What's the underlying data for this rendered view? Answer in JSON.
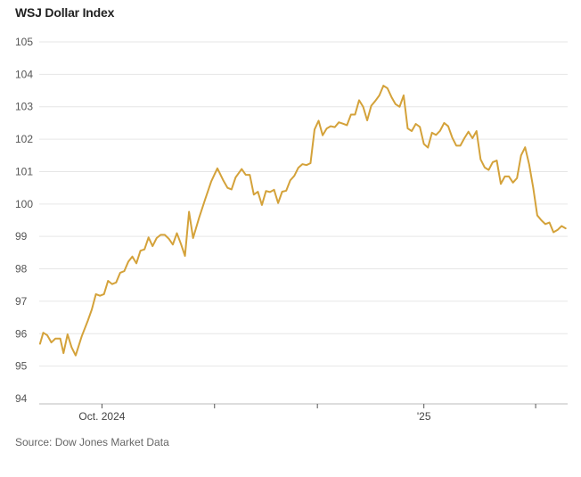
{
  "chart_data": {
    "type": "line",
    "title": "WSJ Dollar Index",
    "xlabel": "",
    "ylabel": "",
    "ylim": [
      94,
      105
    ],
    "yticks": [
      94,
      95,
      96,
      97,
      98,
      99,
      100,
      101,
      102,
      103,
      104,
      105
    ],
    "grid": true,
    "line_color": "#D4A23A",
    "x_tick_labels": [
      {
        "label": "Oct. 2024",
        "x": 5.5
      },
      {
        "label": "",
        "x": 33.3
      },
      {
        "label": "",
        "x": 58.7
      },
      {
        "label": "'25",
        "x": 85.0
      },
      {
        "label": "",
        "x": 112.6
      },
      {
        "label": "",
        "x": 137.4
      }
    ],
    "series": [
      {
        "points": [
          [
            -9.8,
            95.69
          ],
          [
            -9.0,
            96.03
          ],
          [
            -8.0,
            95.95
          ],
          [
            -7.0,
            95.73
          ],
          [
            -6.0,
            95.85
          ],
          [
            -4.8,
            95.85
          ],
          [
            -4.0,
            95.4
          ],
          [
            -3.0,
            95.98
          ],
          [
            -2.0,
            95.58
          ],
          [
            -1.0,
            95.33
          ],
          [
            0.5,
            95.92
          ],
          [
            2.0,
            96.4
          ],
          [
            3.0,
            96.75
          ],
          [
            4.0,
            97.22
          ],
          [
            5.0,
            97.17
          ],
          [
            6.0,
            97.22
          ],
          [
            7.0,
            97.63
          ],
          [
            8.0,
            97.53
          ],
          [
            9.0,
            97.58
          ],
          [
            10.0,
            97.88
          ],
          [
            11.0,
            97.93
          ],
          [
            12.0,
            98.22
          ],
          [
            13.0,
            98.38
          ],
          [
            14.0,
            98.17
          ],
          [
            15.0,
            98.56
          ],
          [
            16.0,
            98.6
          ],
          [
            17.0,
            98.97
          ],
          [
            18.0,
            98.7
          ],
          [
            19.0,
            98.95
          ],
          [
            20.0,
            99.05
          ],
          [
            21.0,
            99.05
          ],
          [
            22.0,
            98.93
          ],
          [
            23.0,
            98.75
          ],
          [
            24.0,
            99.1
          ],
          [
            25.0,
            98.77
          ],
          [
            26.0,
            98.4
          ],
          [
            27.0,
            99.76
          ],
          [
            28.0,
            98.95
          ],
          [
            29.5,
            99.58
          ],
          [
            31.0,
            100.15
          ],
          [
            32.5,
            100.7
          ],
          [
            34.0,
            101.1
          ],
          [
            35.5,
            100.72
          ],
          [
            36.5,
            100.5
          ],
          [
            37.5,
            100.45
          ],
          [
            38.5,
            100.82
          ],
          [
            40.0,
            101.08
          ],
          [
            41.0,
            100.9
          ],
          [
            42.0,
            100.9
          ],
          [
            43.0,
            100.29
          ],
          [
            44.0,
            100.38
          ],
          [
            45.0,
            99.97
          ],
          [
            46.0,
            100.4
          ],
          [
            47.0,
            100.37
          ],
          [
            48.0,
            100.44
          ],
          [
            49.0,
            100.03
          ],
          [
            50.0,
            100.38
          ],
          [
            51.0,
            100.41
          ],
          [
            52.0,
            100.73
          ],
          [
            53.0,
            100.87
          ],
          [
            54.0,
            101.12
          ],
          [
            55.0,
            101.23
          ],
          [
            56.0,
            101.2
          ],
          [
            57.0,
            101.26
          ],
          [
            58.0,
            102.3
          ],
          [
            59.0,
            102.57
          ],
          [
            60.0,
            102.12
          ],
          [
            61.0,
            102.33
          ],
          [
            62.0,
            102.4
          ],
          [
            63.0,
            102.37
          ],
          [
            64.0,
            102.52
          ],
          [
            65.0,
            102.48
          ],
          [
            66.0,
            102.43
          ],
          [
            67.0,
            102.76
          ],
          [
            68.0,
            102.76
          ],
          [
            69.0,
            103.2
          ],
          [
            70.0,
            103.0
          ],
          [
            71.0,
            102.58
          ],
          [
            72.0,
            103.03
          ],
          [
            73.0,
            103.18
          ],
          [
            74.0,
            103.35
          ],
          [
            75.0,
            103.65
          ],
          [
            76.0,
            103.57
          ],
          [
            77.0,
            103.3
          ],
          [
            78.0,
            103.08
          ],
          [
            79.0,
            103.0
          ],
          [
            80.0,
            103.35
          ],
          [
            81.0,
            102.33
          ],
          [
            82.0,
            102.25
          ],
          [
            83.0,
            102.47
          ],
          [
            84.0,
            102.38
          ],
          [
            85.0,
            101.85
          ],
          [
            86.0,
            101.74
          ],
          [
            87.0,
            102.2
          ],
          [
            88.0,
            102.13
          ],
          [
            89.0,
            102.26
          ],
          [
            90.0,
            102.5
          ],
          [
            91.0,
            102.4
          ],
          [
            92.0,
            102.05
          ],
          [
            93.0,
            101.8
          ],
          [
            94.0,
            101.8
          ],
          [
            95.0,
            102.03
          ],
          [
            96.0,
            102.23
          ],
          [
            97.0,
            102.03
          ],
          [
            98.0,
            102.25
          ],
          [
            99.0,
            101.38
          ],
          [
            100.0,
            101.13
          ],
          [
            101.0,
            101.05
          ],
          [
            102.0,
            101.29
          ],
          [
            103.0,
            101.34
          ],
          [
            104.0,
            100.62
          ],
          [
            105.0,
            100.85
          ],
          [
            106.0,
            100.85
          ],
          [
            107.0,
            100.66
          ],
          [
            108.0,
            100.8
          ],
          [
            109.0,
            101.5
          ],
          [
            110.0,
            101.75
          ],
          [
            111.0,
            101.22
          ],
          [
            112.0,
            100.5
          ],
          [
            113.0,
            99.65
          ],
          [
            114.0,
            99.5
          ],
          [
            115.0,
            99.38
          ],
          [
            116.0,
            99.43
          ],
          [
            117.0,
            99.13
          ],
          [
            118.0,
            99.2
          ],
          [
            119.0,
            99.32
          ],
          [
            120.0,
            99.25
          ]
        ]
      }
    ],
    "source": "Source: Dow Jones Market Data"
  }
}
